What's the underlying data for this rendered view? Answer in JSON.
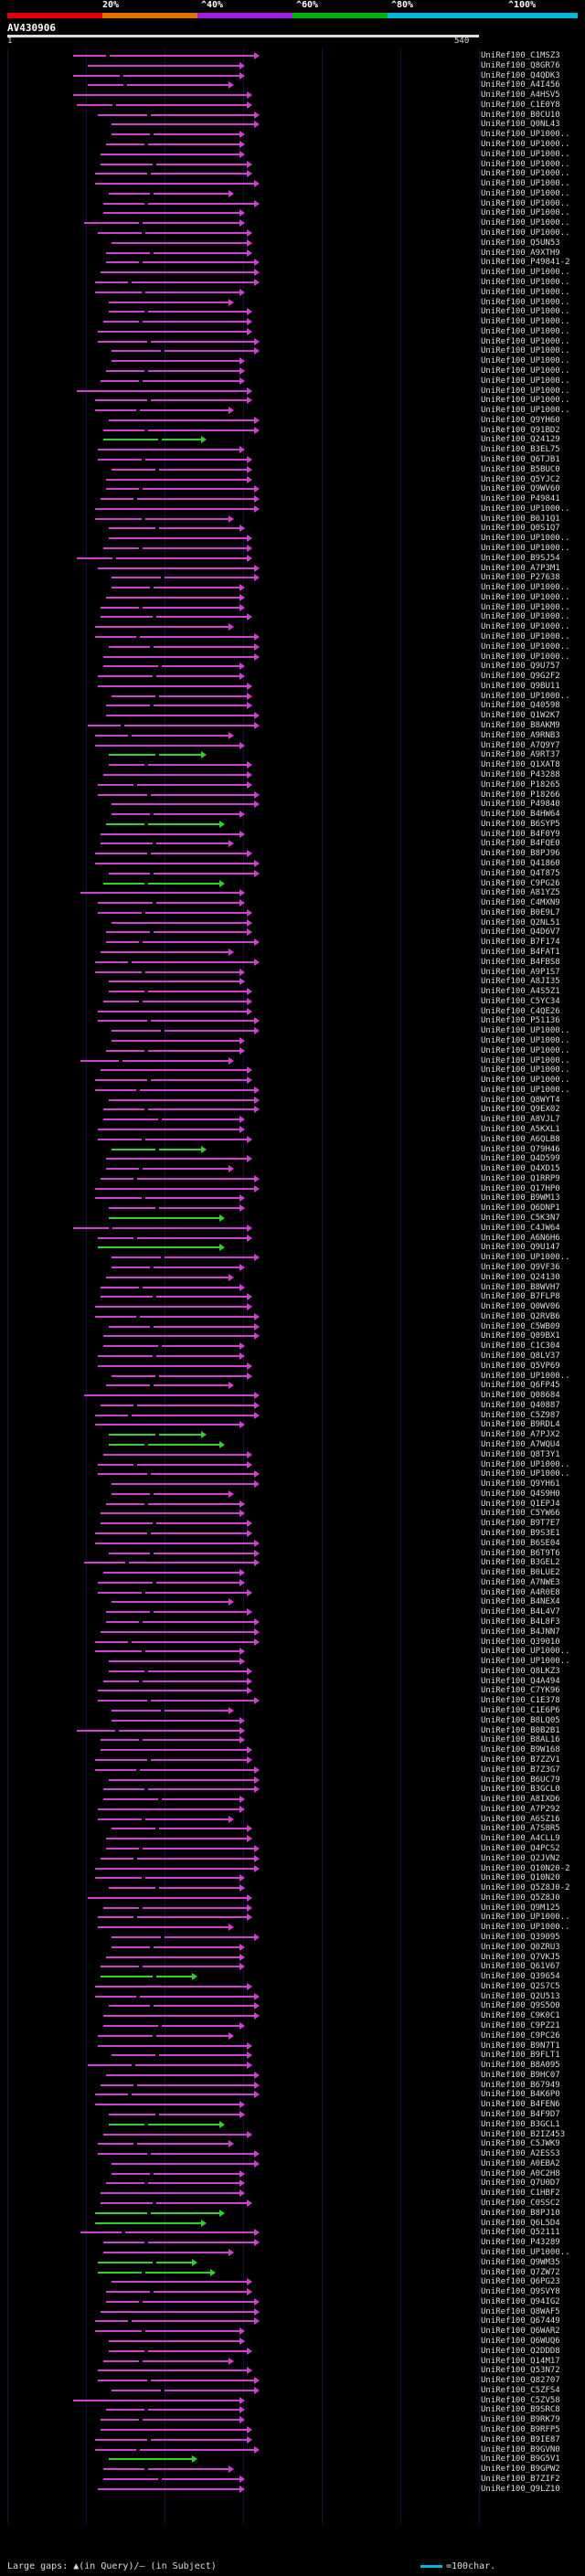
{
  "scale": {
    "labels": [
      "20%",
      "^40%",
      "^60%",
      "^80%",
      "^100%"
    ],
    "colors": [
      "#e00000",
      "#e07000",
      "#a020e0",
      "#00b000",
      "#00b8d8"
    ]
  },
  "query": {
    "title": "AV430906",
    "start": "1",
    "end": "540"
  },
  "hits_labels": [
    "UniRef100_C1MSZ3",
    "UniRef100_Q8GR76",
    "UniRef100_Q4QDK3",
    "UniRef100_A4I456",
    "UniRef100_A4HSV5",
    "UniRef100_C1E0Y8",
    "UniRef100_B0CU10",
    "UniRef100_Q0NL43",
    "UniRef100_UP1000..",
    "UniRef100_UP1000..",
    "UniRef100_UP1000..",
    "UniRef100_UP1000..",
    "UniRef100_UP1000..",
    "UniRef100_UP1000..",
    "UniRef100_UP1000..",
    "UniRef100_UP1000..",
    "UniRef100_UP1000..",
    "UniRef100_UP1000..",
    "UniRef100_UP1000..",
    "UniRef100_Q5UN53",
    "UniRef100_A9XTH9",
    "UniRef100_P49841-2",
    "UniRef100_UP1000..",
    "UniRef100_UP1000..",
    "UniRef100_UP1000..",
    "UniRef100_UP1000..",
    "UniRef100_UP1000..",
    "UniRef100_UP1000..",
    "UniRef100_UP1000..",
    "UniRef100_UP1000..",
    "UniRef100_UP1000..",
    "UniRef100_UP1000..",
    "UniRef100_UP1000..",
    "UniRef100_UP1000..",
    "UniRef100_UP1000..",
    "UniRef100_UP1000..",
    "UniRef100_UP1000..",
    "UniRef100_Q9YH60",
    "UniRef100_Q91BD2",
    "UniRef100_Q24129",
    "UniRef100_B3EL75",
    "UniRef100_Q6TJB1",
    "UniRef100_B5BUC0",
    "UniRef100_Q5YJC2",
    "UniRef100_Q9WV60",
    "UniRef100_P49841",
    "UniRef100_UP1000..",
    "UniRef100_B0J1Q1",
    "UniRef100_Q0S1Q7",
    "UniRef100_UP1000..",
    "UniRef100_UP1000..",
    "UniRef100_B9SJ54",
    "UniRef100_A7P3M1",
    "UniRef100_P27638",
    "UniRef100_UP1000..",
    "UniRef100_UP1000..",
    "UniRef100_UP1000..",
    "UniRef100_UP1000..",
    "UniRef100_UP1000..",
    "UniRef100_UP1000..",
    "UniRef100_UP1000..",
    "UniRef100_UP1000..",
    "UniRef100_Q9U757",
    "UniRef100_Q9G2F2",
    "UniRef100_Q9BU11",
    "UniRef100_UP1000..",
    "UniRef100_Q40598",
    "UniRef100_Q1W2K7",
    "UniRef100_B8AKM9",
    "UniRef100_A9RNB3",
    "UniRef100_A7Q9Y7",
    "UniRef100_A9RT37",
    "UniRef100_Q1XAT8",
    "UniRef100_P43288",
    "UniRef100_P18265",
    "UniRef100_P18266",
    "UniRef100_P49840",
    "UniRef100_B4HW64",
    "UniRef100_B6SYP5",
    "UniRef100_B4F0Y9",
    "UniRef100_B4FQE0",
    "UniRef100_B8PJ96",
    "UniRef100_Q41860",
    "UniRef100_Q4T875",
    "UniRef100_C9PG26",
    "UniRef100_A81YZ5",
    "UniRef100_C4MXN9",
    "UniRef100_B0E9L7",
    "UniRef100_Q2NL51",
    "UniRef100_Q4D6V7",
    "UniRef100_B7F174",
    "UniRef100_B4FAT1",
    "UniRef100_B4FBS8",
    "UniRef100_A9P1S7",
    "UniRef100_A8JI35",
    "UniRef100_A4S5Z1",
    "UniRef100_C5YC34",
    "UniRef100_C4QE26",
    "UniRef100_P51136",
    "UniRef100_UP1000..",
    "UniRef100_UP1000..",
    "UniRef100_UP1000..",
    "UniRef100_UP1000..",
    "UniRef100_UP1000..",
    "UniRef100_UP1000..",
    "UniRef100_UP1000..",
    "UniRef100_Q8WYT4",
    "UniRef100_Q9EX02",
    "UniRef100_A8VJL7",
    "UniRef100_A5KXL1",
    "UniRef100_A6QLB8",
    "UniRef100_Q79H46",
    "UniRef100_Q4D599",
    "UniRef100_Q4XD15",
    "UniRef100_Q1RRP9",
    "UniRef100_Q17HP0",
    "UniRef100_B9WM13",
    "UniRef100_Q6DNP1",
    "UniRef100_C5K3N7",
    "UniRef100_C4JW64",
    "UniRef100_A6N6H6",
    "UniRef100_Q9U147",
    "UniRef100_UP1000..",
    "UniRef100_Q9VF36",
    "UniRef100_Q24130",
    "UniRef100_B8WVH7",
    "UniRef100_B7FLP8",
    "UniRef100_Q0WV06",
    "UniRef100_Q2RVB6",
    "UniRef100_C5WB09",
    "UniRef100_Q09BX1",
    "UniRef100_C1C304",
    "UniRef100_Q8LV37",
    "UniRef100_Q5VP69",
    "UniRef100_UP1000..",
    "UniRef100_Q6FP45",
    "UniRef100_Q08684",
    "UniRef100_Q40887",
    "UniRef100_C5Z987",
    "UniRef100_B9RDL4",
    "UniRef100_A7PJX2",
    "UniRef100_A7WQU4",
    "UniRef100_Q8T3Y1",
    "UniRef100_UP1000..",
    "UniRef100_UP1000..",
    "UniRef100_Q9YH61",
    "UniRef100_Q4S9H0",
    "UniRef100_Q1EPJ4",
    "UniRef100_C5YW66",
    "UniRef100_B9T7E7",
    "UniRef100_B9S3E1",
    "UniRef100_B6SE04",
    "UniRef100_B6T9T6",
    "UniRef100_B3GEL2",
    "UniRef100_B0LUE2",
    "UniRef100_A7NWE3",
    "UniRef100_A4R0E8",
    "UniRef100_B4NEX4",
    "UniRef100_B4L4V7",
    "UniRef100_B4L8F3",
    "UniRef100_B4JNN7",
    "UniRef100_Q39010",
    "UniRef100_UP1000..",
    "UniRef100_UP1000..",
    "UniRef100_Q8LKZ3",
    "UniRef100_Q4A494",
    "UniRef100_C7YK96",
    "UniRef100_C1E378",
    "UniRef100_C1E6P6",
    "UniRef100_B8LQ05",
    "UniRef100_B0B2B1",
    "UniRef100_B8AL16",
    "UniRef100_B9W168",
    "UniRef100_B7ZZV1",
    "UniRef100_B7Z3G7",
    "UniRef100_B6UC79",
    "UniRef100_B3GCL0",
    "UniRef100_A8IXD6",
    "UniRef100_A7P292",
    "UniRef100_A6SZ16",
    "UniRef100_A7S8R5",
    "UniRef100_A4CLL9",
    "UniRef100_Q4PCS2",
    "UniRef100_Q2JVN2",
    "UniRef100_Q10N20-2",
    "UniRef100_Q10N20",
    "UniRef100_Q5Z8J0-2",
    "UniRef100_Q5Z8J0",
    "UniRef100_Q9M125",
    "UniRef100_UP1000..",
    "UniRef100_UP1000..",
    "UniRef100_Q39095",
    "UniRef100_Q0ZRU3",
    "UniRef100_Q7VKJ5",
    "UniRef100_Q61V67",
    "UniRef100_Q39654",
    "UniRef100_Q2S7C5",
    "UniRef100_Q2U513",
    "UniRef100_Q9S5O0",
    "UniRef100_C9K0C1",
    "UniRef100_C9PZ21",
    "UniRef100_C9PC26",
    "UniRef100_B9N7T1",
    "UniRef100_B9FLT1",
    "UniRef100_B8A095",
    "UniRef100_B9HC07",
    "UniRef100_B67949",
    "UniRef100_B4K6P0",
    "UniRef100_B4FEN6",
    "UniRef100_B4F9D7",
    "UniRef100_B3GCL1",
    "UniRef100_B2IZ453",
    "UniRef100_C5JWK9",
    "UniRef100_A2ESS3",
    "UniRef100_A0EBA2",
    "UniRef100_A0C2H8",
    "UniRef100_Q7U0D7",
    "UniRef100_C1HBF2",
    "UniRef100_C0SSC2",
    "UniRef100_B8PJ10",
    "UniRef100_Q6L5D4",
    "UniRef100_Q52111",
    "UniRef100_P43289",
    "UniRef100_UP1000..",
    "UniRef100_Q9WM35",
    "UniRef100_Q7ZW72",
    "UniRef100_Q6PG23",
    "UniRef100_Q9SVY8",
    "UniRef100_Q94IG2",
    "UniRef100_Q8WAF5",
    "UniRef100_Q67449",
    "UniRef100_Q6WAR2",
    "UniRef100_Q6WUQ6",
    "UniRef100_Q2DDD8",
    "UniRef100_Q14M17",
    "UniRef100_Q53N72",
    "UniRef100_Q82707",
    "UniRef100_C5ZFS4",
    "UniRef100_C5ZV58",
    "UniRef100_B9SRC8",
    "UniRef100_B9RK79",
    "UniRef100_B9RFP5",
    "UniRef100_B9IE87",
    "UniRef100_B9GVN0",
    "UniRef100_B9G5V1",
    "UniRef100_B9GPW2",
    "UniRef100_B7ZIF2",
    "UniRef100_Q9LZ10"
  ],
  "legend": {
    "left_text": "Large gaps: ▲(in Query)/— (in Subject)",
    "right_text": "=100char."
  },
  "colors": {
    "magenta": "#d040d0",
    "green": "#30d030",
    "query_bar": "#dddddd"
  }
}
